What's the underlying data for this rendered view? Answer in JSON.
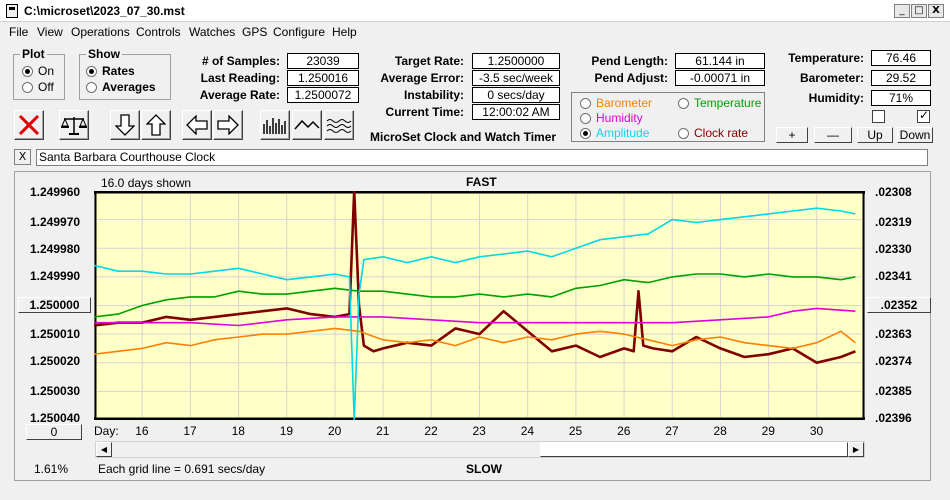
{
  "window": {
    "title": "C:\\microset\\2023_07_30.mst",
    "min_glyph": "_",
    "max_glyph": "□",
    "close_glyph": "X"
  },
  "menu": [
    "File",
    "View",
    "Operations",
    "Controls",
    "Watches",
    "GPS",
    "Configure",
    "Help"
  ],
  "plot_group": {
    "title": "Plot",
    "options": [
      "On",
      "Off"
    ],
    "selected": "On"
  },
  "show_group": {
    "title": "Show",
    "options": [
      "Rates",
      "Averages"
    ],
    "selected": "Rates"
  },
  "stats": {
    "samples_label": "# of Samples:",
    "samples": "23039",
    "last_reading_label": "Last Reading:",
    "last_reading": "1.250016",
    "average_rate_label": "Average Rate:",
    "average_rate": "1.2500072",
    "target_rate_label": "Target Rate:",
    "target_rate": "1.2500000",
    "average_error_label": "Average Error:",
    "average_error": "-3.5 sec/week",
    "instability_label": "Instability:",
    "instability": "0 secs/day",
    "current_time_label": "Current Time:",
    "current_time": "12:00:02 AM",
    "pend_length_label": "Pend Length:",
    "pend_length": "61.144 in",
    "pend_adjust_label": "Pend Adjust:",
    "pend_adjust": "-0.00071 in",
    "temperature_label": "Temperature:",
    "temperature": "76.46",
    "barometer_label": "Barometer:",
    "barometer": "29.52",
    "humidity_label": "Humidity:",
    "humidity": "71%"
  },
  "app_name": "MicroSet Clock and Watch Timer",
  "legend": [
    {
      "label": "Barometer",
      "color": "#ff8000",
      "selected": false
    },
    {
      "label": "Temperature",
      "color": "#00a000",
      "selected": false
    },
    {
      "label": "Humidity",
      "color": "#e000e0",
      "selected": false
    },
    {
      "label": "Amplitude",
      "color": "#00d8e8",
      "selected": true
    },
    {
      "label": "Clock rate",
      "color": "#800000",
      "selected": false
    }
  ],
  "side_buttons": {
    "plus": "+",
    "minus": "—",
    "up": "Up",
    "down": "Down"
  },
  "checkboxes": [
    false,
    true
  ],
  "watch": {
    "remove_glyph": "X",
    "name": "Santa Barbara Courthouse Clock"
  },
  "graph": {
    "days_shown": "16.0 days shown",
    "top_label": "FAST",
    "bottom_label": "SLOW",
    "grid_note": "Each grid line = 0.691 secs/day",
    "percent": "1.61%",
    "left_button": "1.250000",
    "right_button": ".02352",
    "bottom_button": "0",
    "day_prefix": "Day:"
  },
  "chart_data": {
    "type": "line",
    "y_left_labels": [
      "1.249960",
      "1.249970",
      "1.249980",
      "1.249990",
      "1.250010",
      "1.250020",
      "1.250030",
      "1.250040"
    ],
    "y_right_labels": [
      ".02308",
      ".02319",
      ".02330",
      ".02341",
      ".02363",
      ".02374",
      ".02385",
      ".02396"
    ],
    "x_ticks": [
      "16",
      "17",
      "18",
      "19",
      "20",
      "21",
      "22",
      "23",
      "24",
      "25",
      "26",
      "27",
      "28",
      "29",
      "30"
    ],
    "xlim": [
      15,
      31
    ],
    "ylim_top": 1.24996,
    "ylim_bottom": 1.25004,
    "grid": true,
    "series": [
      {
        "name": "Clock rate",
        "color": "#800000",
        "width": 2.6,
        "x": [
          15.0,
          15.5,
          16.0,
          16.5,
          17.0,
          17.5,
          18.0,
          18.5,
          19.0,
          19.5,
          20.0,
          20.3,
          20.4,
          20.5,
          20.6,
          20.8,
          21.0,
          21.5,
          22.0,
          22.5,
          23.0,
          23.5,
          24.0,
          24.5,
          25.0,
          25.5,
          26.0,
          26.2,
          26.3,
          26.4,
          26.6,
          27.0,
          27.5,
          28.0,
          28.5,
          29.0,
          29.5,
          30.0,
          30.5,
          30.8
        ],
        "y": [
          1.250007,
          1.250006,
          1.250006,
          1.250004,
          1.250005,
          1.250004,
          1.250003,
          1.250002,
          1.250001,
          1.250003,
          1.250004,
          1.250003,
          1.24996,
          1.25,
          1.250014,
          1.250016,
          1.250015,
          1.250013,
          1.250014,
          1.250008,
          1.25001,
          1.250002,
          1.250009,
          1.250016,
          1.250014,
          1.250018,
          1.250015,
          1.250016,
          1.249995,
          1.250014,
          1.250015,
          1.250016,
          1.250011,
          1.250015,
          1.250018,
          1.250017,
          1.250015,
          1.25002,
          1.250018,
          1.250016
        ]
      },
      {
        "name": "Barometer",
        "color": "#ff8000",
        "width": 1.6,
        "x": [
          15.0,
          15.5,
          16.0,
          16.5,
          17.0,
          17.5,
          18.0,
          18.5,
          19.0,
          19.5,
          20.0,
          20.5,
          21.0,
          21.5,
          22.0,
          22.5,
          23.0,
          23.5,
          24.0,
          24.5,
          25.0,
          25.5,
          26.0,
          26.5,
          27.0,
          27.5,
          28.0,
          28.5,
          29.0,
          29.5,
          30.0,
          30.5,
          30.8
        ],
        "y": [
          1.250017,
          1.250016,
          1.250015,
          1.250013,
          1.250014,
          1.250012,
          1.250011,
          1.25001,
          1.25001,
          1.250009,
          1.250008,
          1.250009,
          1.250012,
          1.250013,
          1.250012,
          1.250014,
          1.250011,
          1.250013,
          1.250011,
          1.250012,
          1.25001,
          1.250009,
          1.25001,
          1.250012,
          1.250014,
          1.250012,
          1.250011,
          1.250013,
          1.250014,
          1.250015,
          1.250013,
          1.250009,
          1.250013
        ]
      },
      {
        "name": "Humidity",
        "color": "#e000e0",
        "width": 1.6,
        "x": [
          15.0,
          16.0,
          17.0,
          18.0,
          19.0,
          20.0,
          21.0,
          22.0,
          23.0,
          24.0,
          25.0,
          26.0,
          27.0,
          28.0,
          29.0,
          29.5,
          30.0,
          30.8
        ],
        "y": [
          1.250006,
          1.250006,
          1.250006,
          1.250007,
          1.250005,
          1.250004,
          1.250004,
          1.250005,
          1.250006,
          1.250006,
          1.250006,
          1.250006,
          1.250006,
          1.250005,
          1.250004,
          1.250002,
          1.250001,
          1.250002
        ]
      },
      {
        "name": "Temperature",
        "color": "#00a000",
        "width": 1.6,
        "x": [
          15.0,
          15.5,
          16.0,
          16.5,
          17.0,
          17.5,
          18.0,
          18.5,
          19.0,
          19.5,
          20.0,
          20.5,
          21.0,
          21.5,
          22.0,
          22.5,
          23.0,
          23.5,
          24.0,
          24.5,
          25.0,
          25.5,
          26.0,
          26.5,
          27.0,
          27.5,
          28.0,
          28.5,
          29.0,
          29.5,
          30.0,
          30.5,
          30.8
        ],
        "y": [
          1.250004,
          1.250003,
          1.25,
          1.249998,
          1.249997,
          1.249997,
          1.249995,
          1.249996,
          1.249996,
          1.249995,
          1.249994,
          1.249995,
          1.249995,
          1.249996,
          1.249997,
          1.249997,
          1.249996,
          1.249997,
          1.249996,
          1.249997,
          1.249994,
          1.249993,
          1.249991,
          1.249992,
          1.24999,
          1.249989,
          1.249989,
          1.24999,
          1.249989,
          1.24999,
          1.24999,
          1.249991,
          1.24999
        ]
      },
      {
        "name": "Amplitude",
        "color": "#00d8e8",
        "width": 1.6,
        "x": [
          15.0,
          15.5,
          16.0,
          16.5,
          17.0,
          17.5,
          18.0,
          18.5,
          19.0,
          19.5,
          20.0,
          20.3,
          20.4,
          20.5,
          20.6,
          21.0,
          21.5,
          22.0,
          22.5,
          23.0,
          23.5,
          24.0,
          24.5,
          25.0,
          25.5,
          26.0,
          26.5,
          27.0,
          27.5,
          28.0,
          28.5,
          29.0,
          29.5,
          30.0,
          30.5,
          30.8
        ],
        "y": [
          1.249986,
          1.249988,
          1.249988,
          1.249989,
          1.249989,
          1.249988,
          1.249987,
          1.249989,
          1.249991,
          1.24999,
          1.249989,
          1.24999,
          1.25004,
          1.249996,
          1.249984,
          1.249983,
          1.249985,
          1.249983,
          1.249985,
          1.249983,
          1.249982,
          1.249981,
          1.249983,
          1.24998,
          1.249977,
          1.249976,
          1.249975,
          1.24997,
          1.249971,
          1.24997,
          1.249969,
          1.249968,
          1.249967,
          1.249966,
          1.249967,
          1.249968
        ]
      }
    ]
  }
}
